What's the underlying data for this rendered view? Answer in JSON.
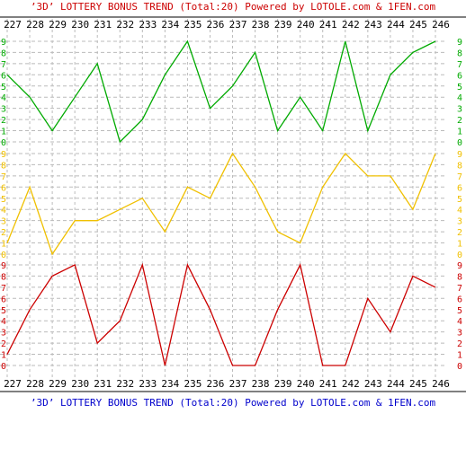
{
  "header": {
    "title": "’3D’ LOTTERY BONUS TREND (Total:20)  Powered by LOTOLE.com & 1FEN.com"
  },
  "footer": {
    "title": "’3D’ LOTTERY BONUS TREND (Total:20)  Powered by LOTOLE.com & 1FEN.com"
  },
  "chart_data": {
    "type": "line",
    "title": "’3D’ LOTTERY BONUS TREND (Total:20)  Powered by LOTOLE.com & 1FEN.com",
    "x": [
      "227",
      "228",
      "229",
      "230",
      "231",
      "232",
      "233",
      "234",
      "235",
      "236",
      "237",
      "238",
      "239",
      "240",
      "241",
      "242",
      "243",
      "244",
      "245",
      "246"
    ],
    "y_tick_labels": [
      "0",
      "1",
      "2",
      "3",
      "4",
      "5",
      "6",
      "7",
      "8",
      "9"
    ],
    "ylim": [
      0,
      9
    ],
    "grid": true,
    "panels": [
      {
        "position": "top",
        "color": "#00aa00",
        "values": [
          6,
          4,
          1,
          4,
          7,
          0,
          2,
          6,
          9,
          3,
          5,
          8,
          1,
          4,
          1,
          9,
          1,
          6,
          8,
          9
        ]
      },
      {
        "position": "middle",
        "color": "#f0c000",
        "values": [
          1,
          6,
          0,
          3,
          3,
          4,
          5,
          2,
          6,
          5,
          9,
          6,
          2,
          1,
          6,
          9,
          7,
          7,
          4,
          9
        ]
      },
      {
        "position": "bottom",
        "color": "#cc0000",
        "values": [
          1,
          5,
          8,
          9,
          2,
          4,
          9,
          0,
          9,
          5,
          0,
          0,
          5,
          9,
          0,
          0,
          6,
          3,
          8,
          7
        ]
      }
    ]
  }
}
